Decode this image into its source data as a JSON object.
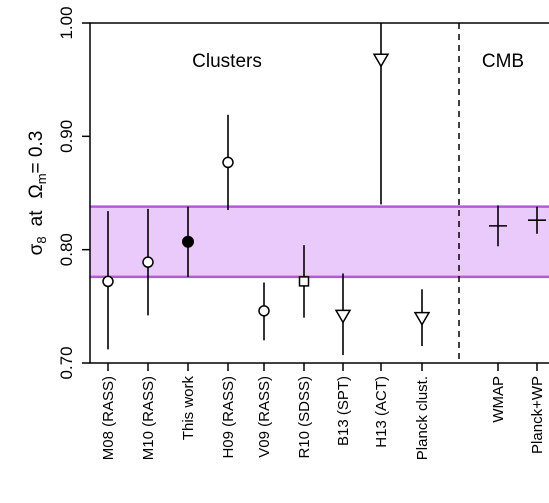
{
  "chart_data": {
    "type": "scatter",
    "title": "",
    "ylabel_parts": {
      "sigma": "σ",
      "sigma_sub": "8",
      "at": "at",
      "omega": "Ω",
      "omega_sub": "m",
      "eq": "= 0.3"
    },
    "ylim": [
      0.7,
      1.0
    ],
    "yticks": [
      "0.70",
      "0.80",
      "0.90",
      "1.00"
    ],
    "region_labels": [
      "Clusters",
      "CMB"
    ],
    "band": {
      "low": 0.776,
      "high": 0.838,
      "fill": "#eac9fb",
      "edge": "#b05bd8"
    },
    "points": [
      {
        "label": "M08 (RASS)",
        "y": 0.772,
        "low": 0.712,
        "high": 0.834,
        "marker": "circle"
      },
      {
        "label": "M10 (RASS)",
        "y": 0.789,
        "low": 0.742,
        "high": 0.836,
        "marker": "circle"
      },
      {
        "label": "This work",
        "y": 0.807,
        "low": 0.776,
        "high": 0.838,
        "marker": "filled-circle"
      },
      {
        "label": "H09 (RASS)",
        "y": 0.877,
        "low": 0.835,
        "high": 0.919,
        "marker": "circle"
      },
      {
        "label": "V09 (RASS)",
        "y": 0.746,
        "low": 0.72,
        "high": 0.771,
        "marker": "circle"
      },
      {
        "label": "R10 (SDSS)",
        "y": 0.772,
        "low": 0.74,
        "high": 0.804,
        "marker": "square"
      },
      {
        "label": "B13 (SPT)",
        "y": 0.742,
        "low": 0.707,
        "high": 0.779,
        "marker": "triangle-down"
      },
      {
        "label": "H13 (ACT)",
        "y": 0.968,
        "low": 0.84,
        "high": 1.0,
        "marker": "triangle-down"
      },
      {
        "label": "Planck clust.",
        "y": 0.74,
        "low": 0.715,
        "high": 0.765,
        "marker": "triangle-down"
      },
      {
        "label": "WMAP",
        "y": 0.821,
        "low": 0.803,
        "high": 0.839,
        "marker": "plus"
      },
      {
        "label": "Planck+WP",
        "y": 0.826,
        "low": 0.814,
        "high": 0.838,
        "marker": "plus"
      }
    ],
    "grid": false,
    "legend": "none"
  }
}
